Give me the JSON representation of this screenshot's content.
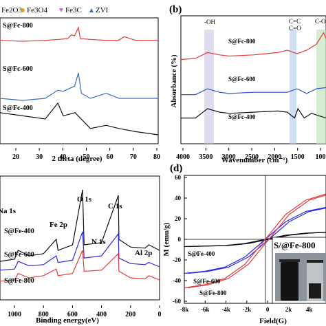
{
  "chart_data": [
    {
      "type": "line",
      "panel": "",
      "xlabel": "2 theta (degree)",
      "ylabel": "",
      "xlim": [
        10,
        80
      ],
      "xticks": [
        "20",
        "30",
        "40",
        "50",
        "60",
        "70",
        "80"
      ],
      "legend_entries": [
        "Fe2O3",
        "Fe3O4",
        "Fe3C",
        "ZVI"
      ],
      "legend_colors": [
        "#e23b2e",
        "#e3a21a",
        "#b86fd0",
        "#2c6fd6"
      ],
      "series": [
        {
          "name": "S@Fc-800",
          "color": "#e33b3b",
          "x": [
            10,
            20,
            30,
            36,
            40,
            41.5,
            43,
            44.7,
            45.5,
            50,
            57,
            62.3,
            65,
            70,
            80
          ],
          "y": [
            0.86,
            0.85,
            0.86,
            0.87,
            0.88,
            0.92,
            0.91,
            1.0,
            0.88,
            0.87,
            0.86,
            0.86,
            0.9,
            0.86,
            0.86
          ]
        },
        {
          "name": "S@Fc-600",
          "color": "#3a6fb8",
          "x": [
            10,
            20,
            30,
            35.6,
            38,
            41,
            43,
            44.7,
            46,
            50,
            57,
            62.7,
            70,
            80
          ],
          "y": [
            0.5,
            0.48,
            0.5,
            0.58,
            0.57,
            0.6,
            0.62,
            0.75,
            0.55,
            0.5,
            0.55,
            0.5,
            0.5,
            0.5
          ]
        },
        {
          "name": "S@Fc-400",
          "color": "#111111",
          "x": [
            10,
            20,
            30,
            35.6,
            38,
            43.2,
            50,
            57,
            62.6,
            70,
            80
          ],
          "y": [
            0.27,
            0.26,
            0.25,
            0.3,
            0.26,
            0.27,
            0.22,
            0.23,
            0.22,
            0.21,
            0.2
          ]
        }
      ]
    },
    {
      "type": "line",
      "panel": "(b)",
      "xlabel": "Wavenumber (cm⁻¹)",
      "ylabel": "Absorbance (%)",
      "xlim": [
        4000,
        1000
      ],
      "xticks": [
        "4000",
        "3500",
        "3000",
        "2500",
        "2000",
        "1500",
        "100"
      ],
      "bands": [
        "-OH",
        "C=C",
        "C=O",
        "C-OH"
      ],
      "series": [
        {
          "name": "S@Fc-800",
          "color": "#e33b3b",
          "x": [
            4000,
            3700,
            3450,
            3200,
            3000,
            2500,
            2000,
            1800,
            1600,
            1400,
            1200,
            1050,
            1000
          ],
          "y": [
            0.72,
            0.73,
            0.78,
            0.76,
            0.75,
            0.76,
            0.78,
            0.8,
            0.77,
            0.8,
            0.85,
            0.95,
            0.9
          ]
        },
        {
          "name": "S@Fc-600",
          "color": "#2c56c8",
          "x": [
            4000,
            3700,
            3450,
            3200,
            3000,
            2500,
            2000,
            1800,
            1600,
            1400,
            1200,
            1000
          ],
          "y": [
            0.42,
            0.42,
            0.47,
            0.44,
            0.43,
            0.44,
            0.44,
            0.44,
            0.47,
            0.43,
            0.47,
            0.48
          ]
        },
        {
          "name": "S@Fc-400",
          "color": "#111111",
          "x": [
            4000,
            3700,
            3450,
            3200,
            3000,
            2500,
            2000,
            1800,
            1650,
            1580,
            1450,
            1300,
            1150,
            1000
          ],
          "y": [
            0.22,
            0.22,
            0.3,
            0.27,
            0.26,
            0.27,
            0.28,
            0.27,
            0.22,
            0.3,
            0.22,
            0.26,
            0.24,
            0.22
          ]
        }
      ]
    },
    {
      "type": "line",
      "panel": "",
      "xlabel": "Binding energy(eV)",
      "ylabel": "",
      "xlim": [
        1100,
        0
      ],
      "xticks": [
        "1000",
        "800",
        "600",
        "400",
        "200",
        "0"
      ],
      "peak_labels": [
        "O 1s",
        "C 1s",
        "Fe 2p",
        "N 1s",
        "Al 2p",
        "Na 1s"
      ],
      "series": [
        {
          "name": "S@Fe-400",
          "color": "#111111",
          "x": [
            1100,
            1000,
            975,
            900,
            800,
            712,
            700,
            600,
            531,
            520,
            400,
            284,
            280,
            200,
            100,
            74,
            0
          ],
          "y": [
            0.35,
            0.37,
            0.45,
            0.4,
            0.42,
            0.55,
            0.45,
            0.5,
            1.0,
            0.5,
            0.52,
            0.95,
            0.55,
            0.48,
            0.47,
            0.5,
            0.45
          ]
        },
        {
          "name": "S@Fe-600",
          "color": "#2b2ae0",
          "x": [
            1100,
            1000,
            975,
            900,
            800,
            712,
            700,
            600,
            531,
            520,
            400,
            284,
            280,
            200,
            100,
            74,
            0
          ],
          "y": [
            0.27,
            0.28,
            0.35,
            0.31,
            0.32,
            0.4,
            0.34,
            0.36,
            0.62,
            0.38,
            0.4,
            0.6,
            0.38,
            0.33,
            0.32,
            0.34,
            0.3
          ]
        },
        {
          "name": "S@Fe-800",
          "color": "#e33b3b",
          "x": [
            1100,
            1000,
            975,
            900,
            800,
            712,
            700,
            600,
            531,
            520,
            400,
            284,
            280,
            200,
            100,
            74,
            0
          ],
          "y": [
            0.17,
            0.18,
            0.24,
            0.2,
            0.22,
            0.28,
            0.22,
            0.24,
            0.45,
            0.26,
            0.27,
            0.42,
            0.26,
            0.2,
            0.19,
            0.22,
            0.18
          ]
        }
      ]
    },
    {
      "type": "line",
      "panel": "(d)",
      "xlabel": "Field(G)",
      "ylabel": "M (emu/g)",
      "xlim": [
        -8000,
        6000
      ],
      "ylim": [
        -60,
        60
      ],
      "xticks": [
        "-8k",
        "-6k",
        "-4k",
        "-2k",
        "0",
        "2k",
        "4k"
      ],
      "yticks": [
        "60",
        "40",
        "20",
        "0",
        "-20",
        "-40",
        "-60"
      ],
      "inset_label": "S/@Fe-800",
      "series": [
        {
          "name": "S@Fe-400",
          "color": "#111111",
          "x": [
            -8000,
            -4000,
            -2000,
            0,
            2000,
            4000,
            6000
          ],
          "y": [
            -7,
            -6,
            -4,
            0,
            4,
            6,
            7
          ]
        },
        {
          "name": "S@Fe-600",
          "color": "#2b2ae0",
          "x": [
            -8000,
            -6000,
            -4000,
            -2000,
            0,
            2000,
            4000,
            6000
          ],
          "y": [
            -33,
            -31,
            -27,
            -17,
            0,
            17,
            27,
            31
          ]
        },
        {
          "name": "S@Fe-800",
          "color": "#e33b3b",
          "x": [
            -8000,
            -6000,
            -4000,
            -2000,
            0,
            2000,
            4000,
            6000
          ],
          "y": [
            -47,
            -44,
            -38,
            -24,
            0,
            24,
            38,
            44
          ]
        }
      ]
    }
  ],
  "panel_a": {
    "legend": {
      "fe2o3": "Fe2O3",
      "fe3o4": "Fe3O4",
      "fe3c": "Fe3C",
      "zvi": "ZVI"
    },
    "labels": {
      "s800": "S@Fc-800",
      "s600": "S@Fc-600",
      "s400": "S@Fc-400"
    },
    "xlabel": "2 theta (degree)",
    "xticks": [
      "20",
      "30",
      "40",
      "50",
      "60",
      "70",
      "80"
    ]
  },
  "panel_b": {
    "tag": "(b)",
    "ylabel": "Absorbance (%)",
    "xlabel": "Wavenumber (cm⁻¹)",
    "bands": {
      "oh": "-OH",
      "cc": "C=C",
      "co": "C=O",
      "coh": "C-OH"
    },
    "labels": {
      "s800": "S@Fc-800",
      "s600": "S@Fc-600",
      "s400": "S@Fc-400"
    },
    "xticks": [
      "4000",
      "3500",
      "3000",
      "2500",
      "2000",
      "1500",
      "100"
    ]
  },
  "panel_c": {
    "peaks": {
      "o1s": "O 1s",
      "c1s": "C 1s",
      "fe2p": "Fe 2p",
      "n1s": "N 1s",
      "al2p": "Al 2p",
      "na1s": "Na 1s"
    },
    "labels": {
      "s400": "S@Fe-400",
      "s600": "S@Fe-600",
      "s800": "S@Fe-800"
    },
    "xlabel": "Binding energy(eV)",
    "xticks": [
      "1000",
      "800",
      "600",
      "400",
      "200",
      "0"
    ]
  },
  "panel_d": {
    "tag": "(d)",
    "ylabel": "M (emu/g)",
    "xlabel": "Field(G)",
    "labels": {
      "s400": "S@Fe-400",
      "s600": "S@Fe-600",
      "s800": "S@Fe-800"
    },
    "inset": "S/@Fe-800",
    "xticks": [
      "-8k",
      "-6k",
      "-4k",
      "-2k",
      "0",
      "2k",
      "4k"
    ],
    "yticks": [
      "60",
      "40",
      "20",
      "0",
      "-20",
      "-40",
      "-60"
    ]
  }
}
